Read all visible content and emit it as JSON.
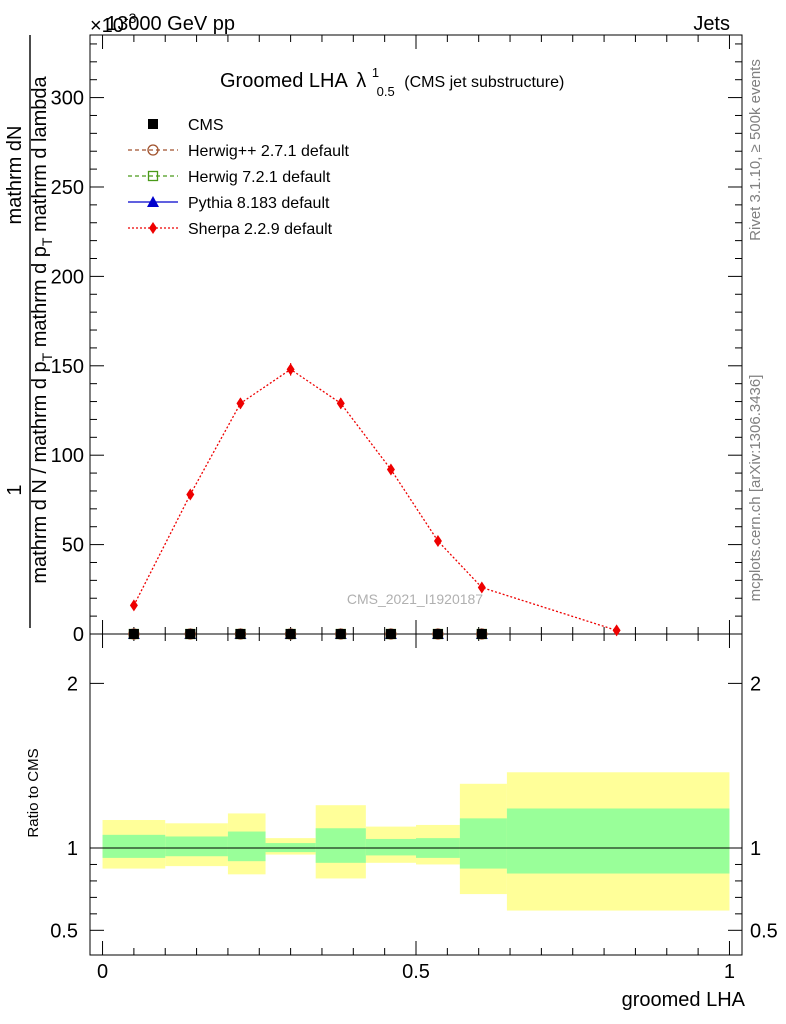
{
  "header": {
    "left": "13000 GeV pp",
    "right": "Jets",
    "exponent": "×10",
    "exponent_power": "-3"
  },
  "side_labels": {
    "rivet": "Rivet 3.1.10, ≥ 500k events",
    "mcplots": "mcplots.cern.ch [arXiv:1306.3436]"
  },
  "watermark": "CMS_2021_I1920187",
  "title": {
    "main": "Groomed LHA",
    "lambda": "λ",
    "sup": "1",
    "sub": "0.5",
    "suffix": "(CMS jet substructure)"
  },
  "ylabel": {
    "numerator_one": "1",
    "numerator_text": "mathrm dN",
    "denominator_pre": "mathrm d N / mathrm d p",
    "denominator_sub": "T",
    "denominator_post": " mathrm d p",
    "denominator_sub2": "T",
    "denominator_post2": " mathrm d lambda"
  },
  "ratio_ylabel": "Ratio to CMS",
  "xlabel": "groomed LHA",
  "legend": [
    {
      "label": "CMS",
      "marker": "square-filled",
      "color": "#000000"
    },
    {
      "label": "Herwig++ 2.7.1 default",
      "marker": "circle-open",
      "color": "#a0522d"
    },
    {
      "label": "Herwig 7.2.1 default",
      "marker": "square-open",
      "color": "#4a9a1a"
    },
    {
      "label": "Pythia 8.183 default",
      "marker": "triangle-filled",
      "color": "#0000cc"
    },
    {
      "label": "Sherpa 2.2.9 default",
      "marker": "diamond-filled",
      "color": "#ee0000"
    }
  ],
  "chart_data": {
    "type": "line",
    "xlim": [
      -0.02,
      1.02
    ],
    "ylim": [
      0,
      335
    ],
    "ratio_ylim": [
      0.35,
      2.3
    ],
    "x_ticks": [
      "0",
      "0.5",
      "1"
    ],
    "x_tick_values": [
      0,
      0.5,
      1
    ],
    "y_ticks": [
      "0",
      "50",
      "100",
      "150",
      "200",
      "250",
      "300"
    ],
    "y_tick_values": [
      0,
      50,
      100,
      150,
      200,
      250,
      300
    ],
    "ratio_ticks": [
      "0.5",
      "1",
      "2"
    ],
    "ratio_tick_values": [
      0.5,
      1,
      2
    ],
    "bin_edges": [
      0,
      0.1,
      0.2,
      0.26,
      0.34,
      0.42,
      0.5,
      0.57,
      0.645,
      1.0
    ],
    "bin_centers": [
      0.05,
      0.14,
      0.22,
      0.3,
      0.38,
      0.46,
      0.535,
      0.605,
      0.82
    ],
    "series": [
      {
        "name": "CMS",
        "values": [
          0,
          0,
          0,
          0,
          0,
          0,
          0,
          0,
          null
        ]
      },
      {
        "name": "Herwig++ 2.7.1 default",
        "values": [
          0,
          0,
          0,
          0,
          0,
          0,
          0,
          0,
          null
        ]
      },
      {
        "name": "Herwig 7.2.1 default",
        "values": [
          0,
          0,
          0,
          0,
          0,
          0,
          0,
          0,
          null
        ]
      },
      {
        "name": "Pythia 8.183 default",
        "values": [
          0,
          0,
          0,
          0,
          0,
          0,
          0,
          0,
          null
        ]
      },
      {
        "name": "Sherpa 2.2.9 default",
        "values": [
          16,
          78,
          129,
          148,
          129,
          92,
          52,
          26,
          2
        ],
        "errors": [
          1.5,
          2.5,
          3,
          3.5,
          3,
          2.5,
          2,
          1.5,
          0.5
        ]
      }
    ],
    "ratio_band_inner": [
      [
        0.94,
        1.08
      ],
      [
        0.95,
        1.07
      ],
      [
        0.92,
        1.1
      ],
      [
        0.975,
        1.03
      ],
      [
        0.91,
        1.12
      ],
      [
        0.955,
        1.055
      ],
      [
        0.94,
        1.06
      ],
      [
        0.875,
        1.18
      ],
      [
        0.845,
        1.24
      ]
    ],
    "ratio_band_outer": [
      [
        0.875,
        1.17
      ],
      [
        0.89,
        1.15
      ],
      [
        0.84,
        1.21
      ],
      [
        0.96,
        1.06
      ],
      [
        0.815,
        1.26
      ],
      [
        0.91,
        1.13
      ],
      [
        0.9,
        1.14
      ],
      [
        0.72,
        1.39
      ],
      [
        0.62,
        1.46
      ]
    ]
  }
}
